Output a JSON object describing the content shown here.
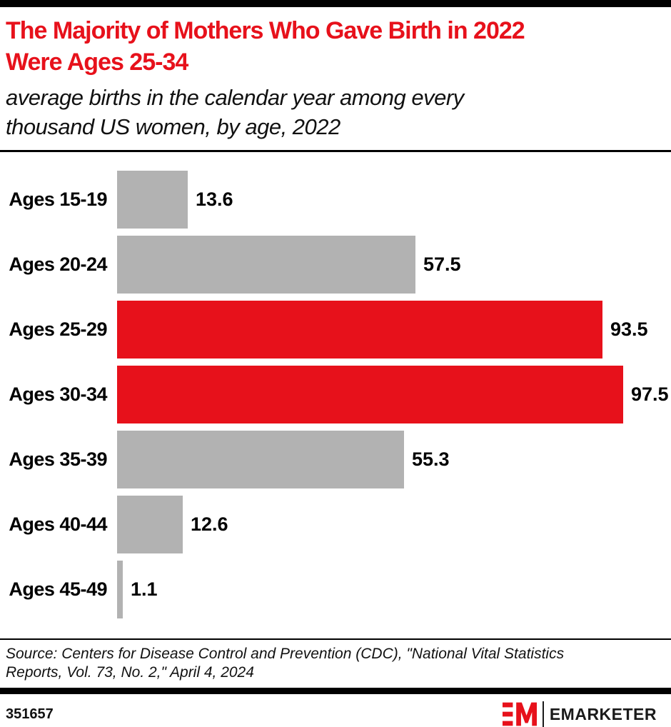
{
  "header": {
    "title": "The Majority of Mothers Who Gave Birth in 2022 Were Ages 25-34",
    "title_lines": [
      "The Majority of Mothers Who Gave Birth in 2022",
      "Were Ages 25-34"
    ],
    "subtitle": "average births in the calendar year among every thousand US women, by age, 2022",
    "subtitle_lines": [
      "average births in the calendar year among every",
      "thousand US women, by age, 2022"
    ]
  },
  "chart_data": {
    "type": "bar",
    "orientation": "horizontal",
    "title": "The Majority of Mothers Who Gave Birth in 2022 Were Ages 25-34",
    "subtitle": "average births in the calendar year among every thousand US women, by age, 2022",
    "categories": [
      "Ages 15-19",
      "Ages 20-24",
      "Ages 25-29",
      "Ages 30-34",
      "Ages 35-39",
      "Ages 40-44",
      "Ages 45-49"
    ],
    "values": [
      13.6,
      57.5,
      93.5,
      97.5,
      55.3,
      12.6,
      1.1
    ],
    "value_labels": [
      "13.6",
      "57.5",
      "93.5",
      "97.5",
      "55.3",
      "12.6",
      "1.1"
    ],
    "highlighted": [
      false,
      false,
      true,
      true,
      false,
      false,
      false
    ],
    "xlim": [
      0,
      100
    ],
    "grid": false,
    "legend": "none",
    "data_labels": "outside-end",
    "bar_color_default": "#B2B2B2",
    "bar_color_highlight": "#E7111B"
  },
  "footer": {
    "source": "Source: Centers for Disease Control and Prevention (CDC), \"National Vital Statistics Reports, Vol. 73, No. 2,\" April 4, 2024",
    "source_lines": [
      "Source: Centers for Disease Control and Prevention (CDC), \"National Vital Statistics",
      "Reports, Vol. 73, No. 2,\" April 4, 2024"
    ],
    "chart_id": "351657",
    "brand_name": "EMARKETER"
  },
  "colors": {
    "accent_red": "#E7111B",
    "neutral_gray": "#B2B2B2",
    "bar_black": "#000000"
  }
}
